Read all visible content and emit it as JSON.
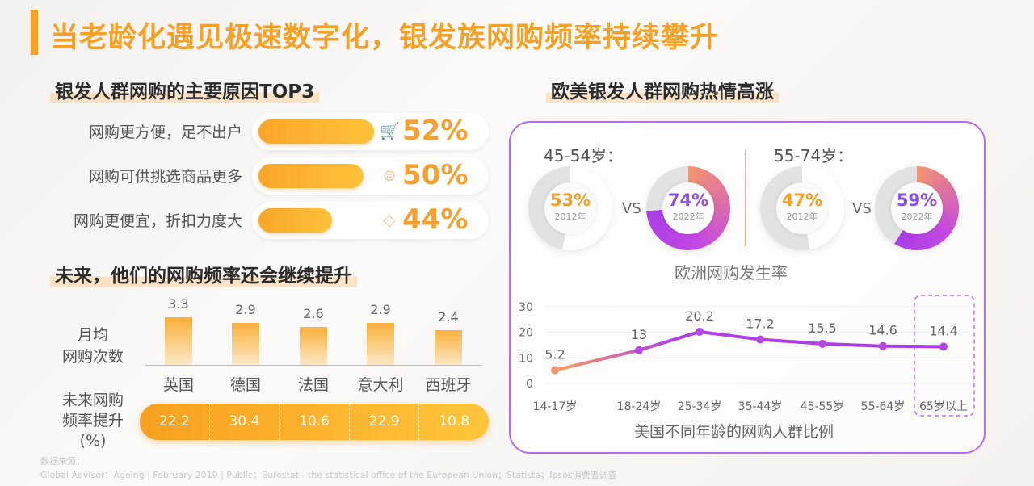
{
  "title": "当老龄化遇见极速数字化，银发族网购频率持续攀升",
  "left": {
    "reasons_title": "银发人群网购的主要原因TOP3",
    "reasons": [
      {
        "label": "网购更方便，足不出户",
        "value": 52,
        "value_label": "52%",
        "icon": "shopping-cart-icon"
      },
      {
        "label": "网购可供挑选商品更多",
        "value": 50,
        "value_label": "50%",
        "icon": "monitor-icon"
      },
      {
        "label": "网购更便宜，折扣力度大",
        "value": 44,
        "value_label": "44%",
        "icon": "price-tag-icon"
      }
    ],
    "future_title": "未来，他们的网购频率还会继续提升",
    "monthly_label_1": "月均",
    "monthly_label_2": "网购次数",
    "growth_label_1": "未来网购",
    "growth_label_2": "频率提升",
    "growth_label_3": "(%)"
  },
  "right": {
    "title": "欧美银发人群网购热情高涨",
    "europe_caption": "欧洲网购发生率",
    "vs": "VS",
    "groups": [
      {
        "age": "45-54岁：",
        "before": {
          "value": 53,
          "label": "53%",
          "year": "2012年"
        },
        "after": {
          "value": 74,
          "label": "74%",
          "year": "2022年"
        }
      },
      {
        "age": "55-74岁：",
        "before": {
          "value": 47,
          "label": "47%",
          "year": "2012年"
        },
        "after": {
          "value": 59,
          "label": "59%",
          "year": "2022年"
        }
      }
    ],
    "us_caption": "美国不同年龄的网购人群比例"
  },
  "chart_data": [
    {
      "type": "bar",
      "title": "月均网购次数",
      "categories": [
        "英国",
        "德国",
        "法国",
        "意大利",
        "西班牙"
      ],
      "values": [
        3.3,
        2.9,
        2.6,
        2.9,
        2.4
      ],
      "value_labels": [
        "3.3",
        "2.9",
        "2.6",
        "2.9",
        "2.4"
      ],
      "growth": [
        "22.2",
        "30.4",
        "10.6",
        "22.9",
        "10.8"
      ]
    },
    {
      "type": "line",
      "title": "美国不同年龄的网购人群比例",
      "categories": [
        "14-17岁",
        "18-24岁",
        "25-34岁",
        "35-44岁",
        "45-55岁",
        "55-64岁",
        "65岁以上"
      ],
      "values": [
        5.2,
        13,
        20.2,
        17.2,
        15.5,
        14.6,
        14.4
      ],
      "value_labels": [
        "5.2",
        "13",
        "20.2",
        "17.2",
        "15.5",
        "14.6",
        "14.4"
      ],
      "yticks": [
        "30",
        "20",
        "10",
        "0"
      ],
      "ylim": [
        0,
        30
      ],
      "highlight": "65岁以上"
    }
  ],
  "source": {
    "label": "数据来源：",
    "text": "Global Advisor：Ageing | February 2019 | Public；Eurostat - the statistical office of the European Union；Statista；Ipsos消费者调查"
  },
  "colors": {
    "orange": "#f5a027",
    "purple": "#b13fe6",
    "salmon": "#f3956e"
  }
}
